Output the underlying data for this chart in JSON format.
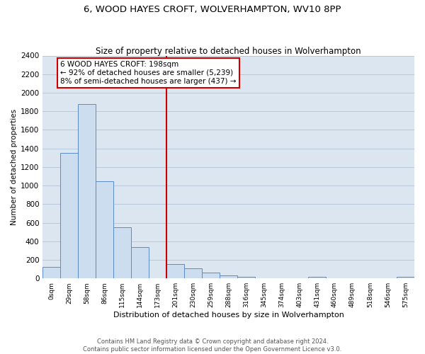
{
  "title": "6, WOOD HAYES CROFT, WOLVERHAMPTON, WV10 8PP",
  "subtitle": "Size of property relative to detached houses in Wolverhampton",
  "xlabel": "Distribution of detached houses by size in Wolverhampton",
  "ylabel": "Number of detached properties",
  "bin_labels": [
    "0sqm",
    "29sqm",
    "58sqm",
    "86sqm",
    "115sqm",
    "144sqm",
    "173sqm",
    "201sqm",
    "230sqm",
    "259sqm",
    "288sqm",
    "316sqm",
    "345sqm",
    "374sqm",
    "403sqm",
    "431sqm",
    "460sqm",
    "489sqm",
    "518sqm",
    "546sqm",
    "575sqm"
  ],
  "bar_heights": [
    125,
    1350,
    1880,
    1050,
    550,
    340,
    0,
    155,
    110,
    60,
    30,
    15,
    0,
    0,
    0,
    15,
    0,
    0,
    0,
    0,
    15
  ],
  "bar_color": "#ccddf0",
  "bar_edge_color": "#5b8cc8",
  "grid_color": "#b8c8dc",
  "background_color": "#dce6f1",
  "property_line_x": 6.5,
  "property_line_color": "#cc0000",
  "annotation_title": "6 WOOD HAYES CROFT: 198sqm",
  "annotation_line1": "← 92% of detached houses are smaller (5,239)",
  "annotation_line2": "8% of semi-detached houses are larger (437) →",
  "annotation_box_edge": "#cc0000",
  "ylim": [
    0,
    2400
  ],
  "yticks": [
    0,
    200,
    400,
    600,
    800,
    1000,
    1200,
    1400,
    1600,
    1800,
    2000,
    2200,
    2400
  ],
  "footer_line1": "Contains HM Land Registry data © Crown copyright and database right 2024.",
  "footer_line2": "Contains public sector information licensed under the Open Government Licence v3.0."
}
